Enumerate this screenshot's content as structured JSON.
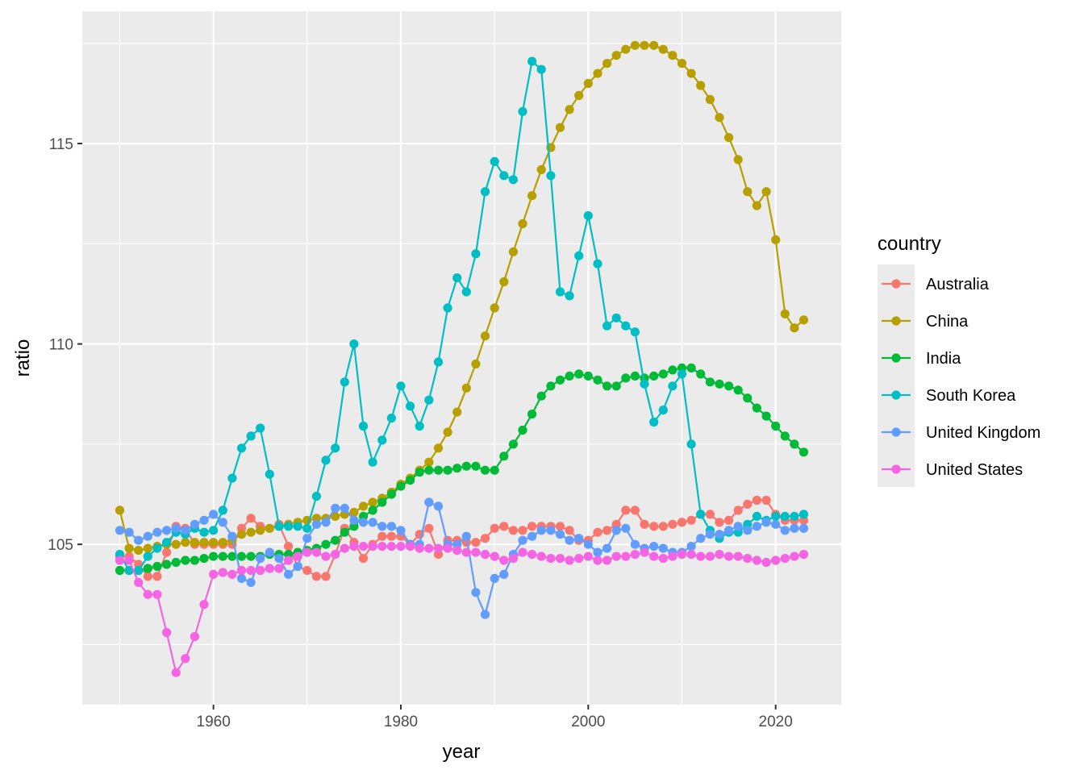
{
  "chart_data": {
    "type": "line",
    "xlabel": "year",
    "ylabel": "ratio",
    "xlim": [
      1946,
      2027
    ],
    "ylim": [
      101.0,
      118.3
    ],
    "x_ticks": [
      1960,
      1980,
      2000,
      2020
    ],
    "x_minor": [
      1950,
      1970,
      1990,
      2010
    ],
    "y_ticks": [
      105,
      110,
      115
    ],
    "y_minor": [
      102.5,
      107.5,
      112.5,
      117.5
    ],
    "grid": true,
    "legend": {
      "title": "country",
      "position": "right"
    },
    "x": [
      1950,
      1951,
      1952,
      1953,
      1954,
      1955,
      1956,
      1957,
      1958,
      1959,
      1960,
      1961,
      1962,
      1963,
      1964,
      1965,
      1966,
      1967,
      1968,
      1969,
      1970,
      1971,
      1972,
      1973,
      1974,
      1975,
      1976,
      1977,
      1978,
      1979,
      1980,
      1981,
      1982,
      1983,
      1984,
      1985,
      1986,
      1987,
      1988,
      1989,
      1990,
      1991,
      1992,
      1993,
      1994,
      1995,
      1996,
      1997,
      1998,
      1999,
      2000,
      2001,
      2002,
      2003,
      2004,
      2005,
      2006,
      2007,
      2008,
      2009,
      2010,
      2011,
      2012,
      2013,
      2014,
      2015,
      2016,
      2017,
      2018,
      2019,
      2020,
      2021,
      2022,
      2023
    ],
    "series": [
      {
        "name": "Australia",
        "color": "#F8766D",
        "values": [
          104.7,
          104.7,
          104.5,
          104.2,
          104.2,
          104.8,
          105.45,
          105.4,
          105.0,
          105.0,
          105.0,
          105.0,
          105.0,
          105.4,
          105.65,
          105.45,
          105.4,
          105.5,
          104.95,
          104.45,
          104.35,
          104.2,
          104.2,
          104.75,
          105.4,
          105.05,
          104.65,
          105.0,
          105.2,
          105.2,
          105.2,
          105.0,
          105.25,
          105.4,
          104.75,
          105.1,
          105.1,
          105.05,
          105.05,
          105.15,
          105.4,
          105.45,
          105.35,
          105.35,
          105.45,
          105.45,
          105.45,
          105.45,
          105.35,
          105.1,
          105.1,
          105.3,
          105.35,
          105.5,
          105.85,
          105.85,
          105.5,
          105.45,
          105.45,
          105.5,
          105.55,
          105.6,
          105.75,
          105.75,
          105.55,
          105.6,
          105.85,
          106.0,
          106.1,
          106.1,
          105.75,
          105.6,
          105.6,
          105.6
        ]
      },
      {
        "name": "China",
        "color": "#B79F00",
        "values": [
          105.85,
          104.9,
          104.85,
          104.9,
          104.95,
          105.0,
          105.0,
          105.05,
          105.05,
          105.05,
          105.05,
          105.05,
          105.1,
          105.25,
          105.3,
          105.35,
          105.4,
          105.45,
          105.5,
          105.55,
          105.6,
          105.65,
          105.65,
          105.7,
          105.75,
          105.8,
          105.95,
          106.05,
          106.15,
          106.3,
          106.5,
          106.65,
          106.85,
          107.05,
          107.4,
          107.8,
          108.3,
          108.9,
          109.5,
          110.2,
          110.9,
          111.55,
          112.3,
          113.0,
          113.7,
          114.35,
          114.9,
          115.4,
          115.85,
          116.2,
          116.5,
          116.75,
          117.0,
          117.2,
          117.35,
          117.45,
          117.45,
          117.45,
          117.35,
          117.2,
          117.0,
          116.75,
          116.45,
          116.1,
          115.65,
          115.15,
          114.6,
          113.8,
          113.45,
          113.8,
          112.6,
          110.75,
          110.4,
          110.6
        ]
      },
      {
        "name": "India",
        "color": "#00BA38",
        "values": [
          104.35,
          104.35,
          104.35,
          104.4,
          104.45,
          104.5,
          104.55,
          104.6,
          104.6,
          104.65,
          104.7,
          104.7,
          104.7,
          104.7,
          104.7,
          104.7,
          104.75,
          104.75,
          104.75,
          104.8,
          104.85,
          104.9,
          105.0,
          105.1,
          105.3,
          105.45,
          105.7,
          105.85,
          106.05,
          106.25,
          106.45,
          106.6,
          106.8,
          106.85,
          106.85,
          106.85,
          106.9,
          106.95,
          106.95,
          106.85,
          106.85,
          107.2,
          107.5,
          107.85,
          108.25,
          108.7,
          108.95,
          109.1,
          109.2,
          109.25,
          109.2,
          109.1,
          108.95,
          108.95,
          109.15,
          109.2,
          109.15,
          109.2,
          109.25,
          109.35,
          109.4,
          109.4,
          109.25,
          109.05,
          109.0,
          108.95,
          108.85,
          108.65,
          108.4,
          108.2,
          107.95,
          107.7,
          107.5,
          107.3
        ]
      },
      {
        "name": "South Korea",
        "color": "#00BFC4",
        "values": [
          104.75,
          104.35,
          104.35,
          104.7,
          104.9,
          105.05,
          105.3,
          105.25,
          105.4,
          105.3,
          105.35,
          105.85,
          106.65,
          107.4,
          107.7,
          107.9,
          106.75,
          105.45,
          105.45,
          105.45,
          105.4,
          106.2,
          107.1,
          107.4,
          109.05,
          110.0,
          107.95,
          107.05,
          107.6,
          108.15,
          108.95,
          108.45,
          107.95,
          108.6,
          109.55,
          110.9,
          111.65,
          111.3,
          112.25,
          113.8,
          114.55,
          114.2,
          114.1,
          115.8,
          117.05,
          116.85,
          114.2,
          111.3,
          111.2,
          112.2,
          113.2,
          112.0,
          110.45,
          110.65,
          110.45,
          110.3,
          109.0,
          108.05,
          108.35,
          108.95,
          109.25,
          107.5,
          105.75,
          105.35,
          105.15,
          105.3,
          105.3,
          105.5,
          105.7,
          105.6,
          105.7,
          105.7,
          105.7,
          105.75
        ]
      },
      {
        "name": "United Kingdom",
        "color": "#619CFF",
        "values": [
          105.35,
          105.3,
          105.1,
          105.2,
          105.3,
          105.35,
          105.4,
          105.35,
          105.5,
          105.6,
          105.75,
          105.55,
          105.2,
          104.15,
          104.05,
          104.65,
          104.8,
          104.65,
          104.25,
          104.45,
          105.15,
          105.5,
          105.55,
          105.9,
          105.9,
          105.6,
          105.55,
          105.55,
          105.45,
          105.45,
          105.35,
          105.0,
          105.0,
          106.05,
          105.95,
          105.0,
          105.0,
          105.2,
          103.8,
          103.25,
          104.15,
          104.25,
          104.75,
          105.1,
          105.2,
          105.35,
          105.35,
          105.25,
          105.1,
          105.15,
          105.0,
          104.8,
          104.9,
          105.35,
          105.4,
          105.0,
          104.9,
          104.95,
          104.9,
          104.8,
          104.8,
          104.95,
          105.15,
          105.25,
          105.25,
          105.35,
          105.45,
          105.35,
          105.45,
          105.55,
          105.5,
          105.35,
          105.4,
          105.4
        ]
      },
      {
        "name": "United States",
        "color": "#F564E3",
        "values": [
          104.6,
          104.6,
          104.05,
          103.75,
          103.75,
          102.8,
          101.8,
          102.15,
          102.7,
          103.5,
          104.25,
          104.3,
          104.25,
          104.35,
          104.35,
          104.35,
          104.4,
          104.4,
          104.6,
          104.7,
          104.8,
          104.8,
          104.7,
          104.75,
          104.9,
          104.95,
          104.95,
          104.95,
          104.95,
          104.95,
          104.95,
          104.95,
          104.9,
          104.9,
          104.9,
          104.9,
          104.85,
          104.8,
          104.8,
          104.75,
          104.7,
          104.6,
          104.65,
          104.8,
          104.75,
          104.7,
          104.65,
          104.65,
          104.6,
          104.65,
          104.7,
          104.6,
          104.6,
          104.7,
          104.7,
          104.75,
          104.8,
          104.7,
          104.65,
          104.7,
          104.75,
          104.75,
          104.7,
          104.7,
          104.75,
          104.7,
          104.7,
          104.65,
          104.6,
          104.55,
          104.6,
          104.65,
          104.7,
          104.75
        ]
      }
    ]
  }
}
